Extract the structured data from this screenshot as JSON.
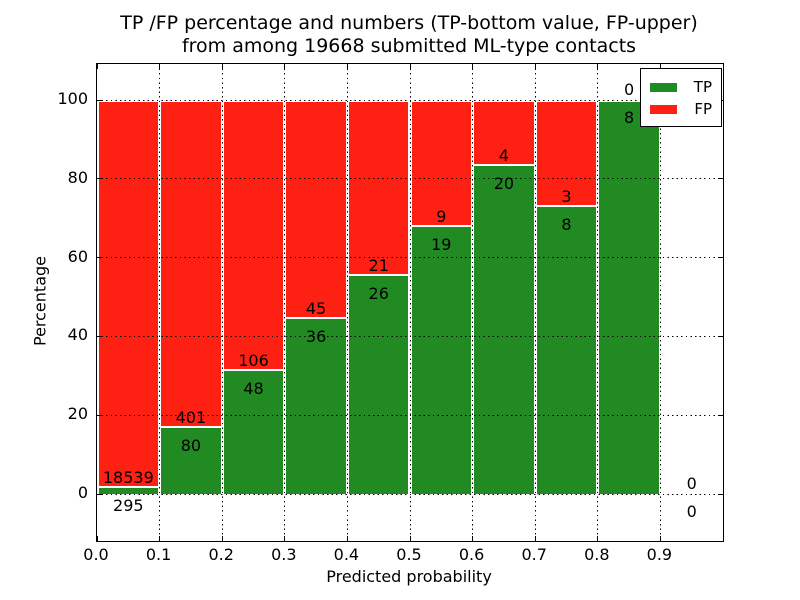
{
  "title": {
    "line1": "TP /FP percentage and numbers (TP-bottom value, FP-upper)",
    "line2": "from among 19668 submitted ML-type contacts"
  },
  "axes": {
    "xlabel": "Predicted probability",
    "ylabel": "Percentage",
    "x_tick_labels": [
      "0.0",
      "0.1",
      "0.2",
      "0.3",
      "0.4",
      "0.5",
      "0.6",
      "0.7",
      "0.8",
      "0.9"
    ],
    "y_tick_values": [
      0,
      20,
      40,
      60,
      80,
      100
    ],
    "y_tick_labels": [
      "0",
      "20",
      "40",
      "60",
      "80",
      "100"
    ]
  },
  "legend": {
    "items": [
      {
        "label": "TP",
        "color": "#228a22"
      },
      {
        "label": "FP",
        "color": "#ff2014"
      }
    ]
  },
  "chart_data": {
    "type": "bar",
    "stacked": true,
    "title": "TP /FP percentage and numbers (TP-bottom value, FP-upper) from among 19668 submitted ML-type contacts",
    "xlabel": "Predicted probability",
    "ylabel": "Percentage",
    "total_contacts": 19668,
    "bin_width": 0.1,
    "bins": [
      "0.0-0.1",
      "0.1-0.2",
      "0.2-0.3",
      "0.3-0.4",
      "0.4-0.5",
      "0.5-0.6",
      "0.6-0.7",
      "0.7-0.8",
      "0.8-0.9",
      "0.9-1.0"
    ],
    "bin_start": [
      0.0,
      0.1,
      0.2,
      0.3,
      0.4,
      0.5,
      0.6,
      0.7,
      0.8,
      0.9
    ],
    "series": [
      {
        "name": "TP",
        "color": "#228a22",
        "counts": [
          295,
          80,
          48,
          36,
          26,
          19,
          20,
          8,
          8,
          0
        ],
        "percent": [
          1.57,
          16.63,
          31.17,
          44.44,
          55.32,
          67.86,
          83.33,
          72.73,
          100.0,
          0.0
        ]
      },
      {
        "name": "FP",
        "color": "#ff2014",
        "counts": [
          18539,
          401,
          106,
          45,
          21,
          9,
          4,
          3,
          0,
          0
        ],
        "percent": [
          98.43,
          83.37,
          68.83,
          55.56,
          44.68,
          32.14,
          16.67,
          27.27,
          0.0,
          0.0
        ]
      }
    ],
    "xlim": [
      0,
      1.0
    ],
    "ylim": [
      -12,
      109
    ],
    "grid": true,
    "grid_style": "dotted",
    "legend_position": "upper right"
  }
}
